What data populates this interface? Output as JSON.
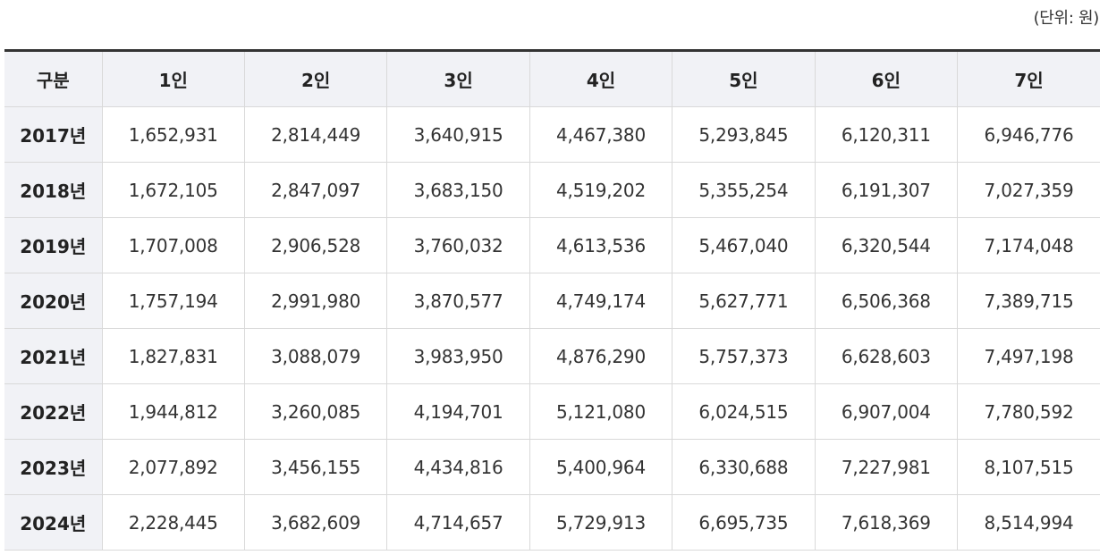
{
  "unit_note": "(단위: 원)",
  "table": {
    "columns": [
      "구분",
      "1인",
      "2인",
      "3인",
      "4인",
      "5인",
      "6인",
      "7인"
    ],
    "rows": [
      {
        "year": "2017년",
        "values": [
          "1,652,931",
          "2,814,449",
          "3,640,915",
          "4,467,380",
          "5,293,845",
          "6,120,311",
          "6,946,776"
        ]
      },
      {
        "year": "2018년",
        "values": [
          "1,672,105",
          "2,847,097",
          "3,683,150",
          "4,519,202",
          "5,355,254",
          "6,191,307",
          "7,027,359"
        ]
      },
      {
        "year": "2019년",
        "values": [
          "1,707,008",
          "2,906,528",
          "3,760,032",
          "4,613,536",
          "5,467,040",
          "6,320,544",
          "7,174,048"
        ]
      },
      {
        "year": "2020년",
        "values": [
          "1,757,194",
          "2,991,980",
          "3,870,577",
          "4,749,174",
          "5,627,771",
          "6,506,368",
          "7,389,715"
        ]
      },
      {
        "year": "2021년",
        "values": [
          "1,827,831",
          "3,088,079",
          "3,983,950",
          "4,876,290",
          "5,757,373",
          "6,628,603",
          "7,497,198"
        ]
      },
      {
        "year": "2022년",
        "values": [
          "1,944,812",
          "3,260,085",
          "4,194,701",
          "5,121,080",
          "6,024,515",
          "6,907,004",
          "7,780,592"
        ]
      },
      {
        "year": "2023년",
        "values": [
          "2,077,892",
          "3,456,155",
          "4,434,816",
          "5,400,964",
          "6,330,688",
          "7,227,981",
          "8,107,515"
        ]
      },
      {
        "year": "2024년",
        "values": [
          "2,228,445",
          "3,682,609",
          "4,714,657",
          "5,729,913",
          "6,695,735",
          "7,618,369",
          "8,514,994"
        ]
      }
    ]
  }
}
